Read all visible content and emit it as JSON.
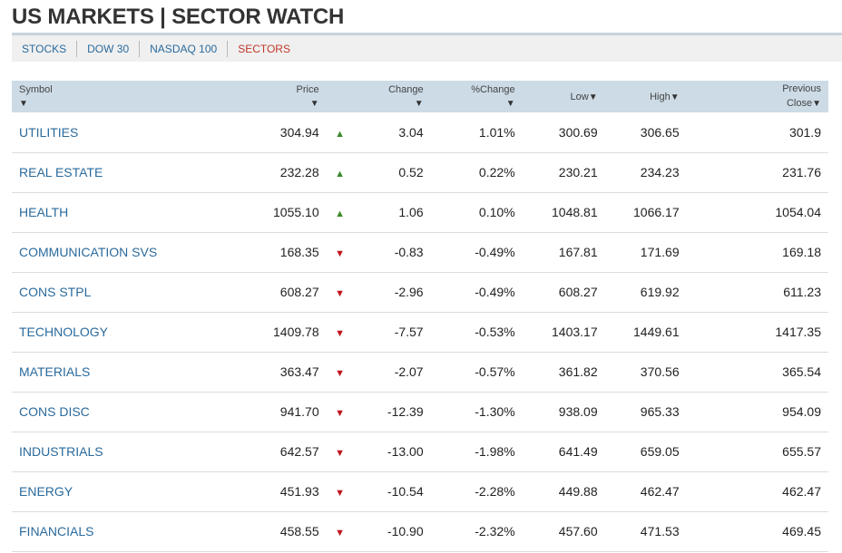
{
  "page_title": "US MARKETS | SECTOR WATCH",
  "tabs": [
    {
      "label": "STOCKS",
      "active": false
    },
    {
      "label": "DOW 30",
      "active": false
    },
    {
      "label": "NASDAQ 100",
      "active": false
    },
    {
      "label": "SECTORS",
      "active": true
    }
  ],
  "columns": {
    "symbol": "Symbol",
    "price": "Price",
    "change": "Change",
    "pct_change": "%Change",
    "low": "Low",
    "high": "High",
    "prev_close_1": "Previous",
    "prev_close_2": "Close"
  },
  "colors": {
    "link": "#2a6a9c",
    "up": "#3b8a2a",
    "down": "#c0151b",
    "header_bg": "#ccdbe6"
  },
  "rows": [
    {
      "symbol": "UTILITIES",
      "price": "304.94",
      "dir": "up",
      "change": "3.04",
      "pct": "1.01%",
      "low": "300.69",
      "high": "306.65",
      "prev": "301.9"
    },
    {
      "symbol": "REAL ESTATE",
      "price": "232.28",
      "dir": "up",
      "change": "0.52",
      "pct": "0.22%",
      "low": "230.21",
      "high": "234.23",
      "prev": "231.76"
    },
    {
      "symbol": "HEALTH",
      "price": "1055.10",
      "dir": "up",
      "change": "1.06",
      "pct": "0.10%",
      "low": "1048.81",
      "high": "1066.17",
      "prev": "1054.04"
    },
    {
      "symbol": "COMMUNICATION SVS",
      "price": "168.35",
      "dir": "down",
      "change": "-0.83",
      "pct": "-0.49%",
      "low": "167.81",
      "high": "171.69",
      "prev": "169.18"
    },
    {
      "symbol": "CONS STPL",
      "price": "608.27",
      "dir": "down",
      "change": "-2.96",
      "pct": "-0.49%",
      "low": "608.27",
      "high": "619.92",
      "prev": "611.23"
    },
    {
      "symbol": "TECHNOLOGY",
      "price": "1409.78",
      "dir": "down",
      "change": "-7.57",
      "pct": "-0.53%",
      "low": "1403.17",
      "high": "1449.61",
      "prev": "1417.35"
    },
    {
      "symbol": "MATERIALS",
      "price": "363.47",
      "dir": "down",
      "change": "-2.07",
      "pct": "-0.57%",
      "low": "361.82",
      "high": "370.56",
      "prev": "365.54"
    },
    {
      "symbol": "CONS DISC",
      "price": "941.70",
      "dir": "down",
      "change": "-12.39",
      "pct": "-1.30%",
      "low": "938.09",
      "high": "965.33",
      "prev": "954.09"
    },
    {
      "symbol": "INDUSTRIALS",
      "price": "642.57",
      "dir": "down",
      "change": "-13.00",
      "pct": "-1.98%",
      "low": "641.49",
      "high": "659.05",
      "prev": "655.57"
    },
    {
      "symbol": "ENERGY",
      "price": "451.93",
      "dir": "down",
      "change": "-10.54",
      "pct": "-2.28%",
      "low": "449.88",
      "high": "462.47",
      "prev": "462.47"
    },
    {
      "symbol": "FINANCIALS",
      "price": "458.55",
      "dir": "down",
      "change": "-10.90",
      "pct": "-2.32%",
      "low": "457.60",
      "high": "471.53",
      "prev": "469.45"
    }
  ]
}
